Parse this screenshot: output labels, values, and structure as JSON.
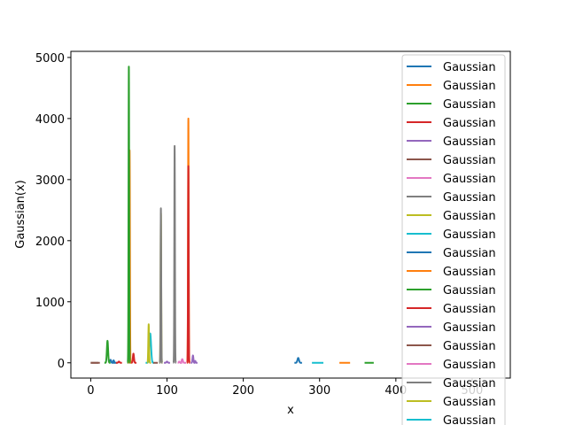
{
  "chart_data": {
    "type": "line",
    "xlabel": "x",
    "ylabel": "Gaussian(x)",
    "xlim": [
      -26,
      550
    ],
    "ylim": [
      -250,
      5100
    ],
    "xticks": [
      0,
      100,
      200,
      300,
      400,
      500
    ],
    "yticks": [
      0,
      1000,
      2000,
      3000,
      4000,
      5000
    ],
    "legend_position": "top-right",
    "legend_entries": [
      "Gaussian",
      "Gaussian",
      "Gaussian",
      "Gaussian",
      "Gaussian",
      "Gaussian",
      "Gaussian",
      "Gaussian",
      "Gaussian",
      "Gaussian",
      "Gaussian",
      "Gaussian",
      "Gaussian",
      "Gaussian",
      "Gaussian",
      "Gaussian",
      "Gaussian",
      "Gaussian",
      "Gaussian",
      "Gaussian"
    ],
    "colors": [
      "#1f77b4",
      "#ff7f0e",
      "#2ca02c",
      "#d62728",
      "#9467bd",
      "#8c564b",
      "#e377c2",
      "#7f7f7f",
      "#bcbd22",
      "#17becf"
    ],
    "series": [
      {
        "name": "Gaussian",
        "peak_x": 26,
        "amplitude": 50,
        "x_range": [
          25,
          32
        ]
      },
      {
        "name": "Gaussian",
        "peak_x": 51,
        "amplitude": 3480,
        "x_range": [
          49,
          53
        ]
      },
      {
        "name": "Gaussian",
        "peak_x": 50,
        "amplitude": 4850,
        "x_range": [
          48,
          52
        ]
      },
      {
        "name": "Gaussian",
        "peak_x": 56,
        "amplitude": 150,
        "x_range": [
          53,
          60
        ]
      },
      {
        "name": "Gaussian",
        "peak_x": 134,
        "amplitude": 120,
        "x_range": [
          131,
          137
        ]
      },
      {
        "name": "Gaussian",
        "peak_x": 1,
        "amplitude": 0,
        "x_range": [
          0,
          10
        ]
      },
      {
        "name": "Gaussian",
        "peak_x": 120,
        "amplitude": 60,
        "x_range": [
          117,
          125
        ]
      },
      {
        "name": "Gaussian",
        "peak_x": 110,
        "amplitude": 3550,
        "x_range": [
          108,
          112
        ]
      },
      {
        "name": "Gaussian",
        "peak_x": 92,
        "amplitude": 2450,
        "x_range": [
          90,
          94
        ]
      },
      {
        "name": "Gaussian",
        "peak_x": 78,
        "amplitude": 480,
        "x_range": [
          72,
          83
        ]
      },
      {
        "name": "Gaussian",
        "peak_x": 30,
        "amplitude": 40,
        "x_range": [
          28,
          35
        ]
      },
      {
        "name": "Gaussian",
        "peak_x": 128,
        "amplitude": 4000,
        "x_range": [
          126,
          130
        ]
      },
      {
        "name": "Gaussian",
        "peak_x": 22,
        "amplitude": 360,
        "x_range": [
          18,
          26
        ]
      },
      {
        "name": "Gaussian",
        "peak_x": 128,
        "amplitude": 3220,
        "x_range": [
          126,
          130
        ]
      },
      {
        "name": "Gaussian",
        "peak_x": 137,
        "amplitude": 30,
        "x_range": [
          135,
          140
        ]
      },
      {
        "name": "Gaussian",
        "peak_x": 7,
        "amplitude": 0,
        "x_range": [
          0,
          12
        ]
      },
      {
        "name": "Gaussian",
        "peak_x": 116,
        "amplitude": 20,
        "x_range": [
          114,
          120
        ]
      },
      {
        "name": "Gaussian",
        "peak_x": 92,
        "amplitude": 2530,
        "x_range": [
          90,
          94
        ]
      },
      {
        "name": "Gaussian",
        "peak_x": 76,
        "amplitude": 630,
        "x_range": [
          74,
          79
        ]
      },
      {
        "name": "Gaussian",
        "peak_x": 297,
        "amplitude": 0,
        "x_range": [
          290,
          305
        ]
      },
      {
        "name": "Gaussian",
        "peak_x": 272,
        "amplitude": 80,
        "x_range": [
          267,
          277
        ]
      },
      {
        "name": "Gaussian",
        "peak_x": 333,
        "amplitude": 0,
        "x_range": [
          326,
          340
        ]
      },
      {
        "name": "Gaussian",
        "peak_x": 365,
        "amplitude": 0,
        "x_range": [
          359,
          371
        ]
      },
      {
        "name": "Gaussian",
        "peak_x": 37,
        "amplitude": 20,
        "x_range": [
          33,
          41
        ]
      },
      {
        "name": "Gaussian",
        "peak_x": 100,
        "amplitude": 20,
        "x_range": [
          96,
          104
        ]
      },
      {
        "name": "Gaussian",
        "peak_x": 85,
        "amplitude": 0,
        "x_range": [
          82,
          88
        ]
      }
    ]
  }
}
